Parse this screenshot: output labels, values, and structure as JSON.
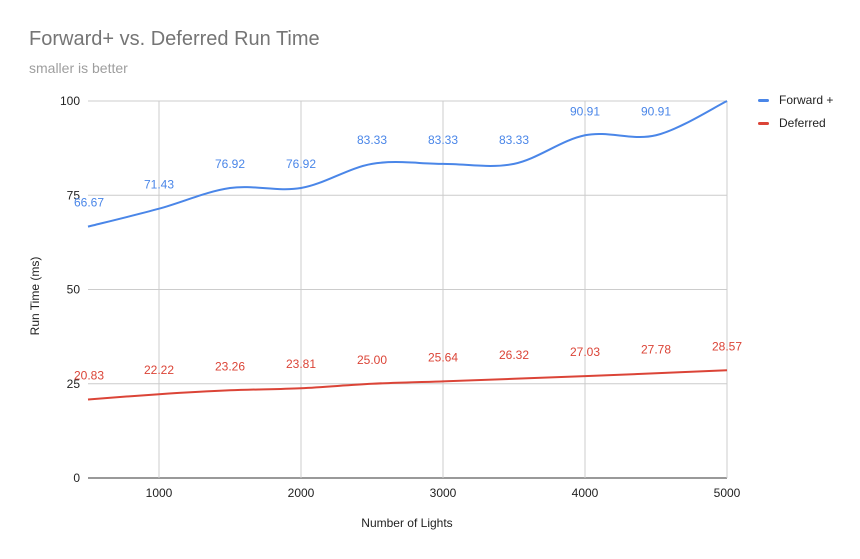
{
  "chart_data": {
    "type": "line",
    "title": "Forward+ vs. Deferred Run Time",
    "subtitle": "smaller is better",
    "xlabel": "Number of Lights",
    "ylabel": "Run Time (ms)",
    "x": [
      500,
      1000,
      1500,
      2000,
      2500,
      3000,
      3500,
      4000,
      4500,
      5000
    ],
    "xlim": [
      500,
      5000
    ],
    "ylim": [
      0,
      100
    ],
    "x_ticks": [
      "1000",
      "2000",
      "3000",
      "4000",
      "5000"
    ],
    "y_ticks": [
      "0",
      "25",
      "50",
      "75",
      "100"
    ],
    "grid": true,
    "legend_position": "right",
    "series": [
      {
        "name": "Forward +",
        "color": "#4a86e8",
        "values": [
          66.67,
          71.43,
          76.92,
          76.92,
          83.33,
          83.33,
          83.33,
          90.91,
          90.91,
          100
        ],
        "labels": [
          "66.67",
          "71.43",
          "76.92",
          "76.92",
          "83.33",
          "83.33",
          "83.33",
          "90.91",
          "90.91",
          ""
        ]
      },
      {
        "name": "Deferred",
        "color": "#db4437",
        "values": [
          20.83,
          22.22,
          23.26,
          23.81,
          25.0,
          25.64,
          26.32,
          27.03,
          27.78,
          28.57
        ],
        "labels": [
          "20.83",
          "22.22",
          "23.26",
          "23.81",
          "25.00",
          "25.64",
          "26.32",
          "27.03",
          "27.78",
          "28.57"
        ]
      }
    ]
  }
}
